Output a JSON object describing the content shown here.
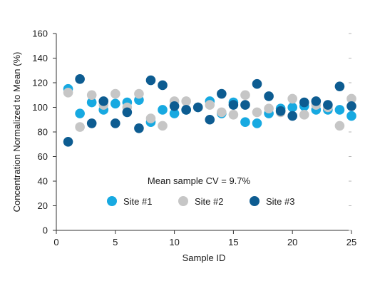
{
  "chart_data": {
    "type": "scatter",
    "title": "",
    "xlabel": "Sample ID",
    "ylabel": "Concentration Normalized to Mean (%)",
    "xlim": [
      0,
      25
    ],
    "ylim": [
      0,
      160
    ],
    "xticks": [
      0,
      5,
      10,
      15,
      20,
      25
    ],
    "yticks": [
      0,
      20,
      40,
      60,
      80,
      100,
      120,
      140,
      160
    ],
    "grid": false,
    "legend_position": "bottom-center",
    "annotation": "Mean sample CV = 9.7%",
    "series": [
      {
        "name": "Site #1",
        "color": "#17a9e1",
        "points": [
          [
            1,
            115
          ],
          [
            2,
            95
          ],
          [
            3,
            104
          ],
          [
            4,
            98
          ],
          [
            5,
            103
          ],
          [
            6,
            104
          ],
          [
            7,
            106
          ],
          [
            8,
            88
          ],
          [
            9,
            98
          ],
          [
            10,
            95
          ],
          [
            11,
            98
          ],
          [
            12,
            100
          ],
          [
            13,
            105
          ],
          [
            14,
            95
          ],
          [
            15,
            104
          ],
          [
            16,
            88
          ],
          [
            17,
            87
          ],
          [
            18,
            95
          ],
          [
            19,
            99
          ],
          [
            20,
            100
          ],
          [
            21,
            101
          ],
          [
            22,
            98
          ],
          [
            23,
            98
          ],
          [
            24,
            98
          ],
          [
            25,
            93
          ]
        ]
      },
      {
        "name": "Site #2",
        "color": "#c6c6c6",
        "points": [
          [
            1,
            112
          ],
          [
            2,
            84
          ],
          [
            3,
            110
          ],
          [
            4,
            102
          ],
          [
            5,
            111
          ],
          [
            6,
            100
          ],
          [
            7,
            111
          ],
          [
            8,
            91
          ],
          [
            9,
            85
          ],
          [
            10,
            105
          ],
          [
            11,
            105
          ],
          [
            12,
            100
          ],
          [
            13,
            102
          ],
          [
            14,
            96
          ],
          [
            15,
            94
          ],
          [
            16,
            110
          ],
          [
            17,
            96
          ],
          [
            18,
            99
          ],
          [
            19,
            96
          ],
          [
            20,
            107
          ],
          [
            21,
            94
          ],
          [
            22,
            102
          ],
          [
            23,
            100
          ],
          [
            24,
            85
          ],
          [
            25,
            107
          ]
        ]
      },
      {
        "name": "Site #3",
        "color": "#0d5c91",
        "points": [
          [
            1,
            72
          ],
          [
            2,
            123
          ],
          [
            3,
            87
          ],
          [
            4,
            105
          ],
          [
            5,
            87
          ],
          [
            6,
            96
          ],
          [
            7,
            83
          ],
          [
            8,
            122
          ],
          [
            9,
            118
          ],
          [
            10,
            101
          ],
          [
            11,
            98
          ],
          [
            12,
            100
          ],
          [
            13,
            90
          ],
          [
            14,
            111
          ],
          [
            15,
            102
          ],
          [
            16,
            102
          ],
          [
            17,
            119
          ],
          [
            18,
            109
          ],
          [
            19,
            97
          ],
          [
            20,
            93
          ],
          [
            21,
            104
          ],
          [
            22,
            105
          ],
          [
            23,
            102
          ],
          [
            24,
            117
          ],
          [
            25,
            101
          ]
        ]
      }
    ]
  }
}
